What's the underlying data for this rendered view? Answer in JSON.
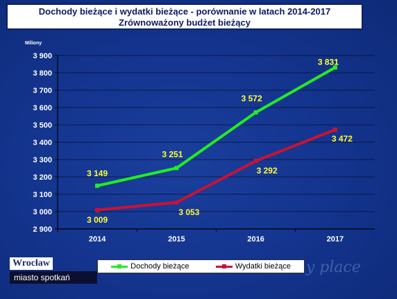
{
  "title": {
    "line1": "Dochody bieżące i wydatki bieżące - porównanie w latach 2014-2017",
    "line2": "Zrównoważony budżet bieżący"
  },
  "unit_label": "Miliony",
  "logo": {
    "top": "Wrocław",
    "bottom": "miasto spotkań"
  },
  "deco_text": "my place",
  "colors": {
    "dochody": "#22ee22",
    "wydatki": "#cc1133",
    "labels": "#ffff33"
  },
  "chart_data": {
    "type": "line",
    "title": "Dochody bieżące i wydatki bieżące - porównanie w latach 2014-2017",
    "subtitle": "Zrównoważony budżet bieżący",
    "ylabel": "Miliony",
    "categories": [
      "2014",
      "2015",
      "2016",
      "2017"
    ],
    "ylim": [
      2900,
      3900
    ],
    "yticks": [
      2900,
      3000,
      3100,
      3200,
      3300,
      3400,
      3500,
      3600,
      3700,
      3800,
      3900
    ],
    "ytick_labels": [
      "2 900",
      "3 000",
      "3 100",
      "3 200",
      "3 300",
      "3 400",
      "3 500",
      "3 600",
      "3 700",
      "3 800",
      "3 900"
    ],
    "grid": true,
    "legend": "bottom",
    "series": [
      {
        "name": "Dochody bieżące",
        "values": [
          3149,
          3251,
          3572,
          3831
        ],
        "labels": [
          "3 149",
          "3 251",
          "3 572",
          "3 831"
        ]
      },
      {
        "name": "Wydatki bieżące",
        "values": [
          3009,
          3053,
          3292,
          3472
        ],
        "labels": [
          "3 009",
          "3 053",
          "3 292",
          "3 472"
        ]
      }
    ]
  }
}
